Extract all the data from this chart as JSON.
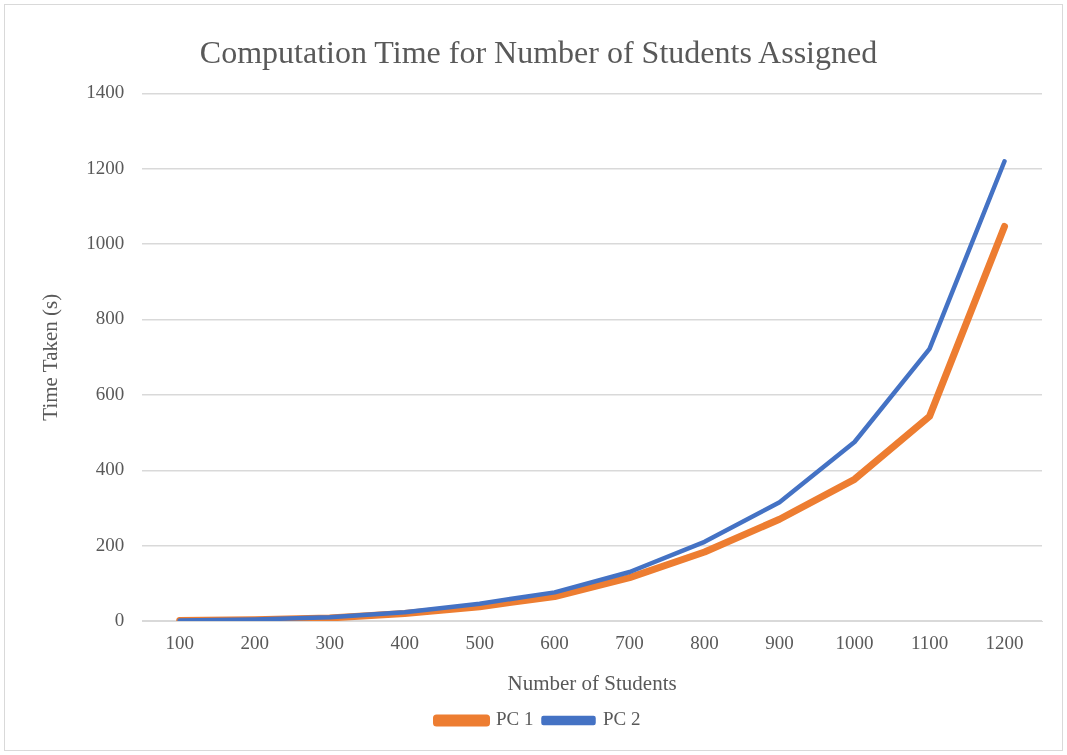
{
  "chart_data": {
    "type": "line",
    "title": "Computation Time for Number of Students Assigned",
    "xlabel": "Number of Students",
    "ylabel": "Time Taken (s)",
    "categories": [
      "100",
      "200",
      "300",
      "400",
      "500",
      "600",
      "700",
      "800",
      "900",
      "1000",
      "1100",
      "1200"
    ],
    "series": [
      {
        "name": "PC 1",
        "color": "#ed7d31",
        "values": [
          1,
          3,
          8,
          20,
          38,
          65,
          115,
          183,
          270,
          376,
          543,
          1047
        ]
      },
      {
        "name": "PC 2",
        "color": "#4472c4",
        "values": [
          1,
          4,
          10,
          23,
          46,
          76,
          130,
          210,
          315,
          475,
          722,
          1220
        ]
      }
    ],
    "ylim": [
      0,
      1400
    ],
    "yticks": [
      0,
      200,
      400,
      600,
      800,
      1000,
      1200,
      1400
    ],
    "grid": "y",
    "legend": "bottom",
    "marker": "none",
    "line_style": "solid"
  }
}
